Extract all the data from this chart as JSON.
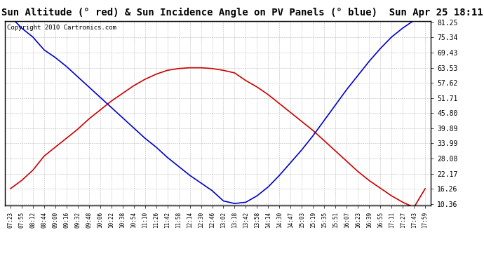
{
  "title": "Sun Altitude (° red) & Sun Incidence Angle on PV Panels (° blue)  Sun Apr 25 18:11",
  "copyright": "Copyright 2010 Cartronics.com",
  "yticks": [
    10.36,
    16.26,
    22.17,
    28.08,
    33.99,
    39.89,
    45.8,
    51.71,
    57.62,
    63.53,
    69.43,
    75.34,
    81.25
  ],
  "xtick_labels": [
    "07:23",
    "07:55",
    "08:12",
    "08:44",
    "09:00",
    "09:16",
    "09:32",
    "09:48",
    "10:06",
    "10:22",
    "10:38",
    "10:54",
    "11:10",
    "11:26",
    "11:42",
    "11:58",
    "12:14",
    "12:30",
    "12:46",
    "13:02",
    "13:18",
    "13:42",
    "13:58",
    "14:14",
    "14:30",
    "14:47",
    "15:03",
    "15:19",
    "15:35",
    "15:51",
    "16:07",
    "16:23",
    "16:39",
    "16:55",
    "17:11",
    "17:27",
    "17:43",
    "17:59"
  ],
  "red_values": [
    16.3,
    19.5,
    23.5,
    29.0,
    32.5,
    36.0,
    39.5,
    43.5,
    47.0,
    50.5,
    53.5,
    56.5,
    59.0,
    61.0,
    62.5,
    63.2,
    63.5,
    63.5,
    63.2,
    62.5,
    61.5,
    58.5,
    56.0,
    53.0,
    49.5,
    46.0,
    42.5,
    39.0,
    35.0,
    31.0,
    27.0,
    23.0,
    19.5,
    16.5,
    13.5,
    11.0,
    9.0,
    16.3
  ],
  "blue_values": [
    83.5,
    79.0,
    75.5,
    70.5,
    67.5,
    64.0,
    60.0,
    56.0,
    52.0,
    48.0,
    44.0,
    40.0,
    36.0,
    32.5,
    28.5,
    25.0,
    21.5,
    18.5,
    15.5,
    11.5,
    10.5,
    11.0,
    13.5,
    17.0,
    21.5,
    26.5,
    31.5,
    37.0,
    43.0,
    49.0,
    55.0,
    60.5,
    66.0,
    71.0,
    75.5,
    79.0,
    82.0,
    83.5
  ],
  "red_color": "#cc0000",
  "blue_color": "#0000cc",
  "bg_color": "#ffffff",
  "grid_color": "#bbbbbb",
  "title_fontsize": 10,
  "copyright_fontsize": 6.5,
  "ymin": 10.36,
  "ymax": 81.25,
  "figwidth": 6.9,
  "figheight": 3.75,
  "dpi": 100
}
